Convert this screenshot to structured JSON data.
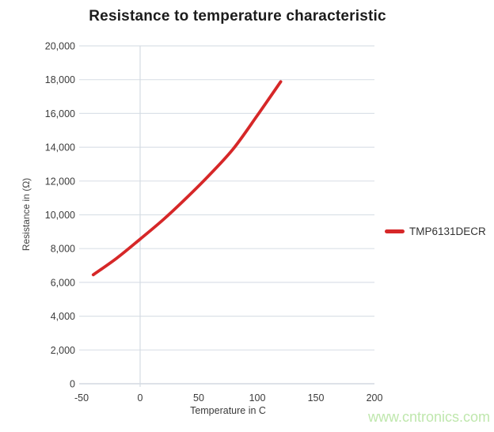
{
  "page": {
    "watermark": "www.cntronics.com",
    "watermark_color": "#bfe7ad",
    "background": "#ffffff"
  },
  "colors": {
    "grid": "#dbe1e8",
    "grid_vertical": "#d4dbe3",
    "axis_line": "#c9d1da",
    "tick_text": "#3b3b3b",
    "title_text": "#1c1c1c",
    "axis_label_text": "#444444",
    "legend_text": "#333333"
  },
  "chart_data": {
    "type": "line",
    "title": "Resistance to temperature characteristic",
    "xlabel": "Temperature in C",
    "ylabel": "Resistance in (Ω)",
    "xlim": [
      -50,
      200
    ],
    "ylim": [
      0,
      20000
    ],
    "xticks": [
      -50,
      0,
      50,
      100,
      150,
      200
    ],
    "xtick_labels": [
      "-50",
      "0",
      "50",
      "100",
      "150",
      "200"
    ],
    "yticks": [
      0,
      2000,
      4000,
      6000,
      8000,
      10000,
      12000,
      14000,
      16000,
      18000,
      20000
    ],
    "ytick_labels": [
      "0",
      "2,000",
      "4,000",
      "6,000",
      "8,000",
      "10,000",
      "12,000",
      "14,000",
      "16,000",
      "18,000",
      "20,000"
    ],
    "grid": {
      "horizontal": true,
      "vertical_at": [
        0
      ]
    },
    "legend_position": "right",
    "series": [
      {
        "name": "TMP6131DECR",
        "color": "#d62728",
        "x": [
          -40,
          -20,
          0,
          20,
          40,
          60,
          80,
          100,
          120
        ],
        "y": [
          6450,
          7430,
          8560,
          9730,
          11030,
          12420,
          13950,
          15880,
          17880
        ]
      }
    ]
  }
}
